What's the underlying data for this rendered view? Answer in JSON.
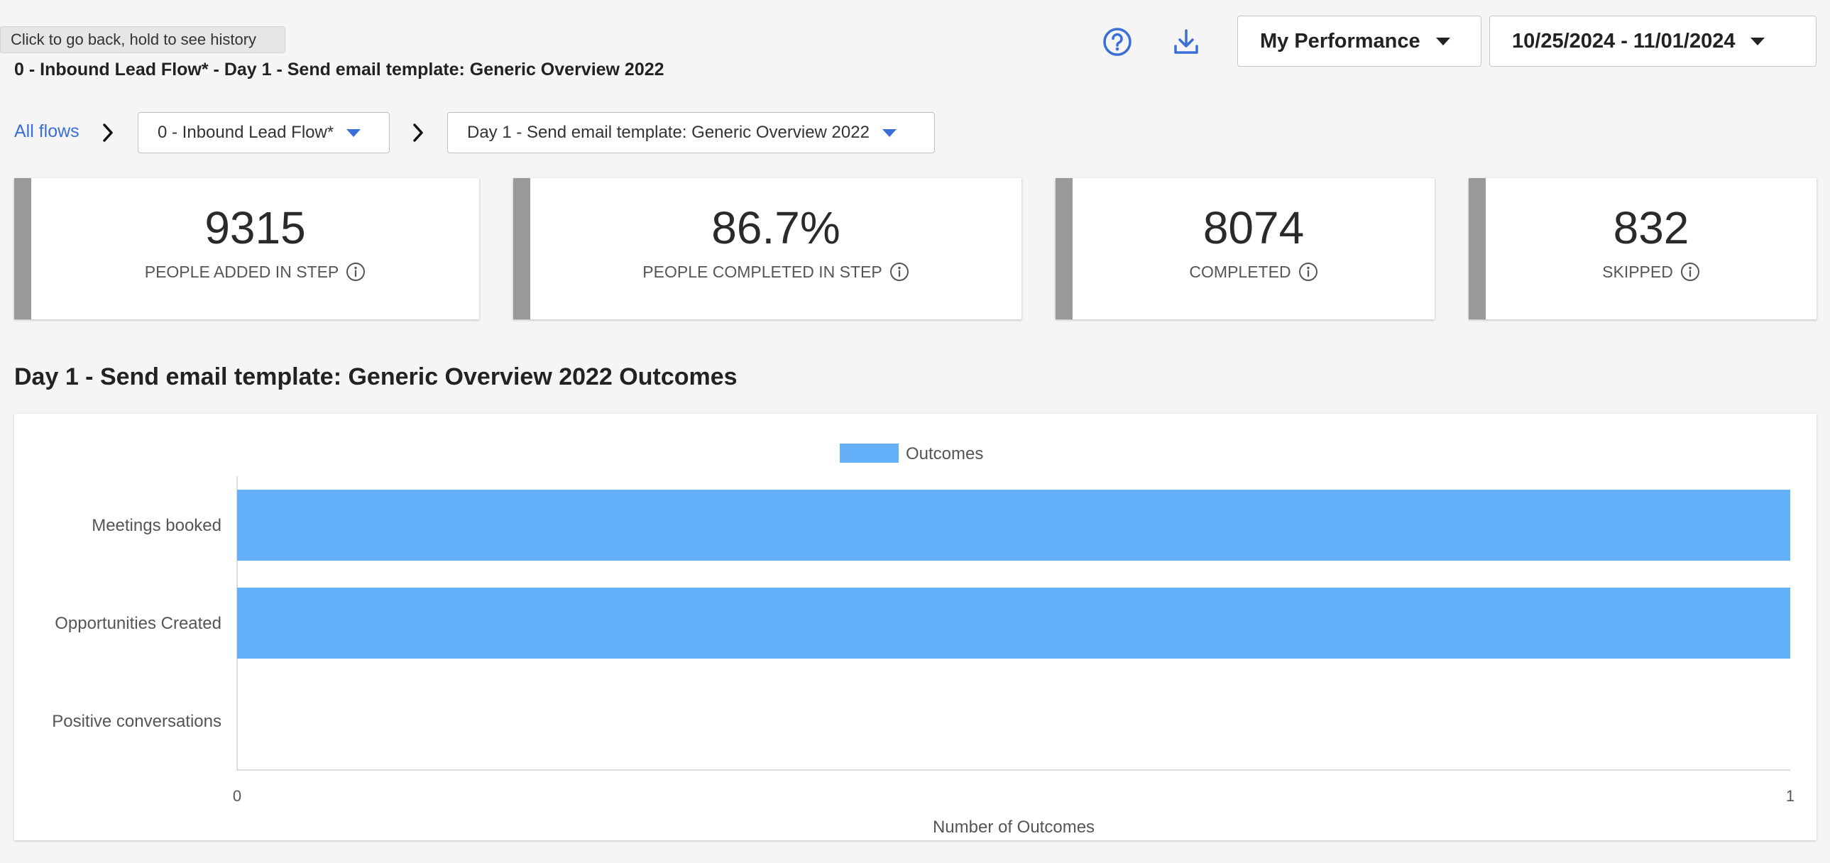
{
  "tooltip": "Click to go back, hold to see history",
  "page_heading": "0 - Inbound Lead Flow* - Day 1 - Send email template: Generic Overview 2022",
  "toolbar": {
    "performance_label": "My Performance",
    "date_range": "10/25/2024 - 11/01/2024"
  },
  "breadcrumb": {
    "root": "All flows",
    "flow": "0 - Inbound Lead Flow*",
    "step": "Day 1 - Send email template: Generic Overview 2022"
  },
  "kpis": [
    {
      "value": "9315",
      "label": "PEOPLE ADDED IN STEP"
    },
    {
      "value": "86.7%",
      "label": "PEOPLE COMPLETED IN STEP"
    },
    {
      "value": "8074",
      "label": "COMPLETED"
    },
    {
      "value": "832",
      "label": "SKIPPED"
    }
  ],
  "section_title": "Day 1 - Send email template: Generic Overview 2022 Outcomes",
  "colors": {
    "accent_blue": "#3a6fd8",
    "bar": "#64b0f8",
    "kpi_stripe": "#999999"
  },
  "chart_data": {
    "type": "bar",
    "orientation": "horizontal",
    "categories": [
      "Meetings booked",
      "Opportunities Created",
      "Positive conversations"
    ],
    "series": [
      {
        "name": "Outcomes",
        "values": [
          1,
          1,
          0
        ]
      }
    ],
    "xlabel": "Number of Outcomes",
    "ylabel": "",
    "xlim": [
      0,
      1
    ],
    "xticks": [
      "0",
      "1"
    ],
    "legend": "top-center",
    "grid": false
  }
}
